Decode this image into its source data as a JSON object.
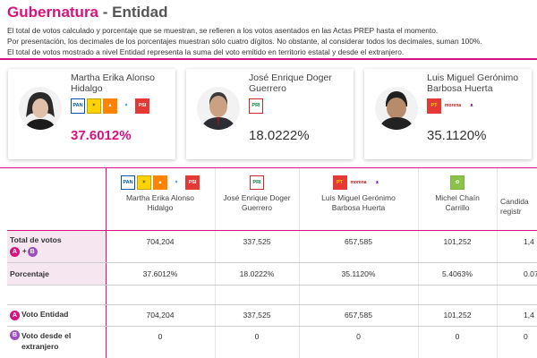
{
  "header": {
    "title_part1": "Gubernatura",
    "separator": " - ",
    "title_part2": "Entidad",
    "notes": [
      "El total de votos calculado y porcentaje que se muestran, se refieren a los votos asentados en las Actas PREP hasta el momento.",
      "Por presentación, los decimales de los porcentajes muestran sólo cuatro dígitos. No obstante, al considerar todos los decimales, suman 100%.",
      "El total de votos mostrado a nivel Entidad representa la suma del voto emitido en territorio estatal y desde el extranjero."
    ]
  },
  "cards": [
    {
      "name": "Martha Erika Alonso Hidalgo",
      "percent": "37.6012%",
      "logos": [
        "PAN",
        "PRD",
        "MC",
        "CPP",
        "PSI"
      ]
    },
    {
      "name": "José Enrique Doger Guerrero",
      "percent": "18.0222%",
      "logos": [
        "PRI"
      ]
    },
    {
      "name": "Luis Miguel Gerónimo Barbosa Huerta",
      "percent": "35.1120%",
      "logos": [
        "PT",
        "morena",
        "PES"
      ]
    }
  ],
  "table": {
    "columns": [
      {
        "name": "Martha Erika Alonso Hidalgo",
        "logos": [
          "PAN",
          "PRD",
          "MC",
          "CPP",
          "PSI"
        ]
      },
      {
        "name": "José Enrique Doger Guerrero",
        "logos": [
          "PRI"
        ]
      },
      {
        "name": "Luis Miguel Gerónimo Barbosa Huerta",
        "logos": [
          "PT",
          "morena",
          "PES"
        ]
      },
      {
        "name": "Michel Chaín Carrillo",
        "logos": [
          "VERDE"
        ]
      },
      {
        "name": "Candida registr",
        "logos": []
      }
    ],
    "rows": {
      "total_label": "Total de votos",
      "badge_a": "A",
      "badge_plus": "+",
      "badge_b": "B",
      "total_values": [
        "704,204",
        "337,525",
        "657,585",
        "101,252",
        "1,4"
      ],
      "percent_label": "Porcentaje",
      "percent_values": [
        "37.6012%",
        "18.0222%",
        "35.1120%",
        "5.4063%",
        "0.07"
      ],
      "entidad_label": "Voto Entidad",
      "entidad_values": [
        "704,204",
        "337,525",
        "657,585",
        "101,252",
        "1,4"
      ],
      "extranjero_label": "Voto desde el extranjero",
      "extranjero_values": [
        "0",
        "0",
        "0",
        "0",
        "0"
      ]
    }
  },
  "colors": {
    "accent": "#d5127e",
    "badge_b": "#9b4fc1"
  }
}
